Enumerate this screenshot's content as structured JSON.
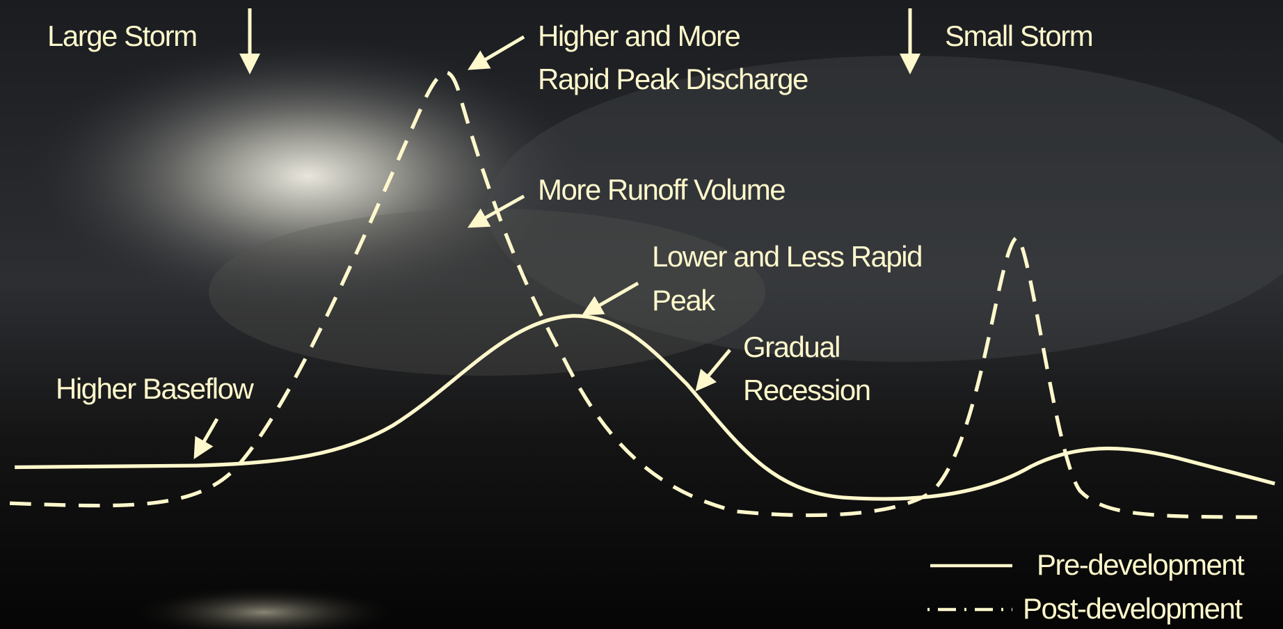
{
  "annotations": {
    "large_storm": "Large Storm",
    "small_storm": "Small Storm",
    "higher_peak": [
      "Higher and More",
      "Rapid Peak Discharge"
    ],
    "more_runoff": "More Runoff Volume",
    "lower_peak": [
      "Lower and Less Rapid",
      "Peak"
    ],
    "gradual_recession": [
      "Gradual",
      "Recession"
    ],
    "higher_baseflow": "Higher Baseflow"
  },
  "legend": [
    "Pre-development",
    "Post-development"
  ]
}
